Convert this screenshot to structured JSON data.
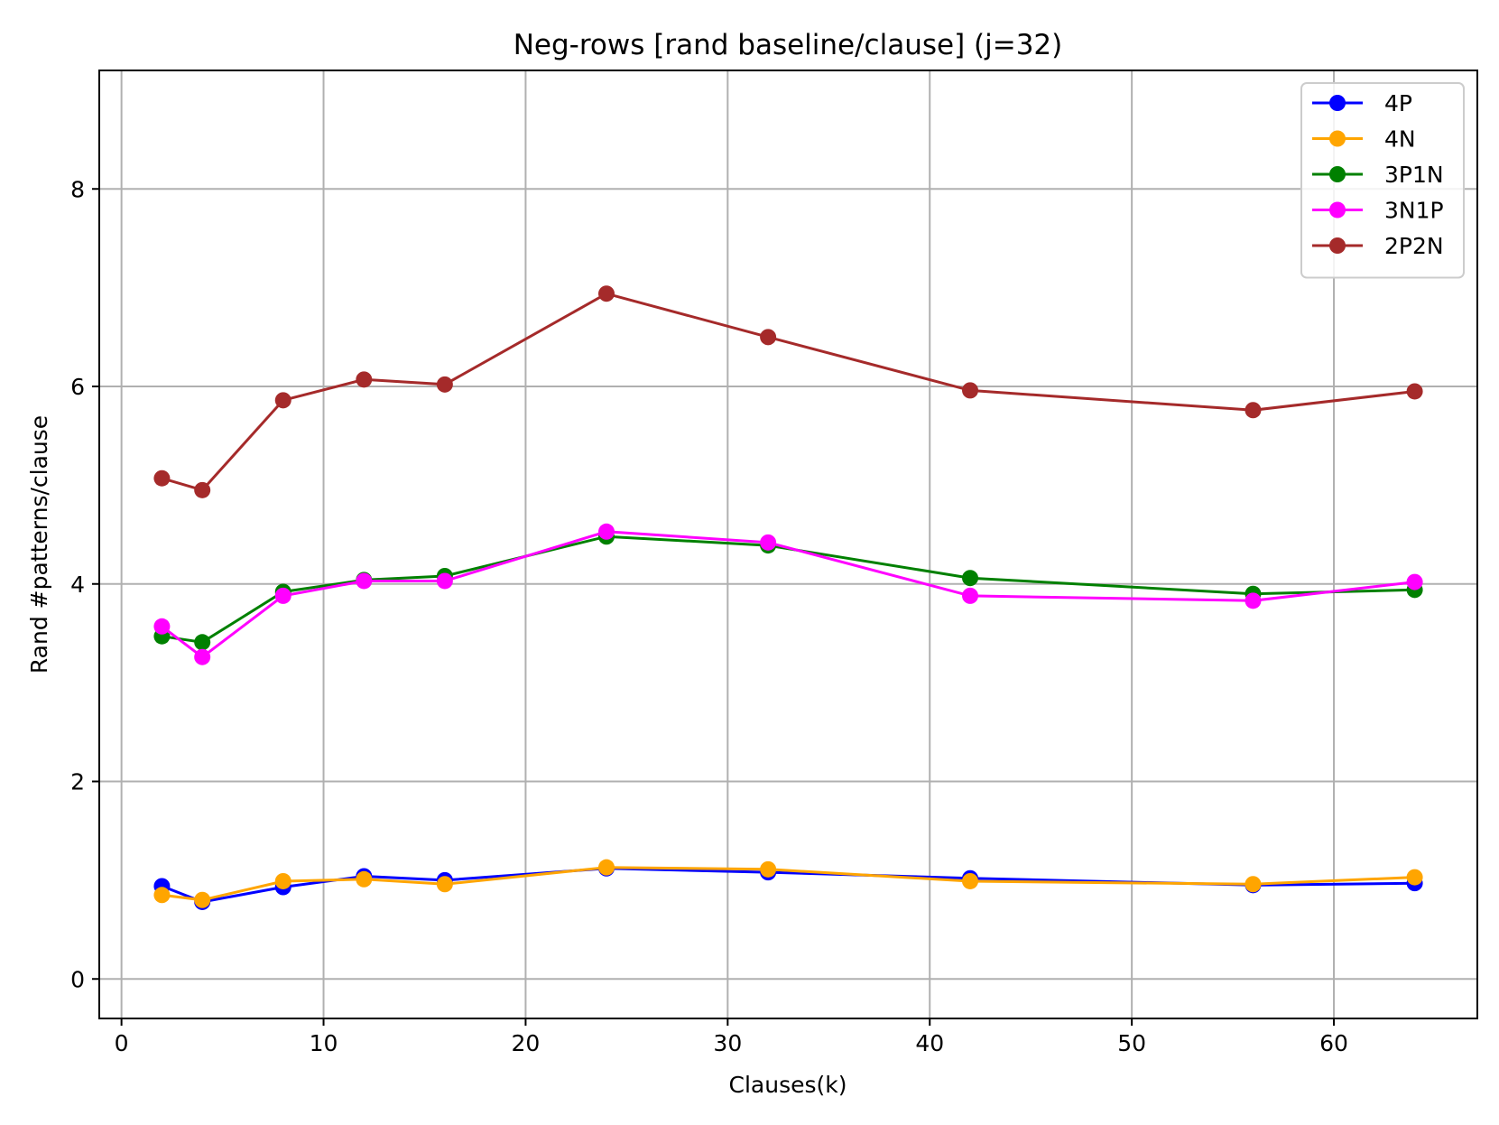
{
  "chart_data": {
    "type": "line",
    "title": "Neg-rows [rand baseline/clause] (j=32)",
    "xlabel": "Clauses(k)",
    "ylabel": "Rand #patterns/clause",
    "xlim": [
      -1.1,
      67.1
    ],
    "ylim": [
      -0.4,
      9.2
    ],
    "xticks": [
      0,
      10,
      20,
      30,
      40,
      50,
      60
    ],
    "yticks": [
      0,
      2,
      4,
      6,
      8
    ],
    "grid": true,
    "legend_position": "top-right",
    "x": [
      2,
      4,
      8,
      12,
      16,
      24,
      32,
      42,
      56,
      64
    ],
    "series": [
      {
        "name": "4P",
        "color": "#0000ff",
        "values": [
          0.94,
          0.78,
          0.93,
          1.04,
          1.0,
          1.12,
          1.08,
          1.02,
          0.95,
          0.97
        ]
      },
      {
        "name": "4N",
        "color": "#ffa500",
        "values": [
          0.85,
          0.8,
          0.99,
          1.01,
          0.96,
          1.13,
          1.11,
          0.99,
          0.96,
          1.03
        ]
      },
      {
        "name": "3P1N",
        "color": "#008000",
        "values": [
          3.47,
          3.41,
          3.92,
          4.04,
          4.08,
          4.48,
          4.39,
          4.06,
          3.9,
          3.94
        ]
      },
      {
        "name": "3N1P",
        "color": "#ff00ff",
        "values": [
          3.57,
          3.26,
          3.88,
          4.03,
          4.03,
          4.53,
          4.42,
          3.88,
          3.83,
          4.02
        ]
      },
      {
        "name": "2P2N",
        "color": "#a52a2a",
        "values": [
          5.07,
          4.95,
          5.86,
          6.07,
          6.02,
          6.94,
          6.5,
          5.96,
          5.76,
          5.95
        ]
      }
    ]
  }
}
